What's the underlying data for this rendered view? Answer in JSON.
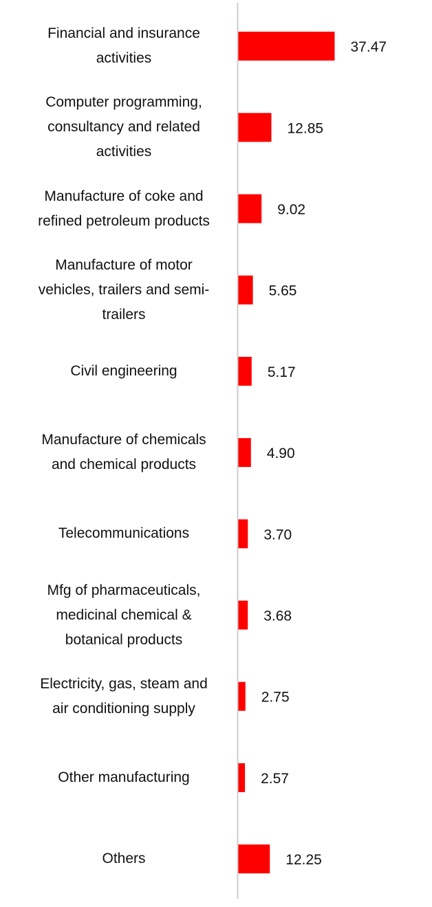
{
  "chart_data": {
    "type": "bar",
    "orientation": "horizontal",
    "categories": [
      [
        "Financial and insurance",
        "activities"
      ],
      [
        "Computer programming,",
        "consultancy and related",
        "activities"
      ],
      [
        "Manufacture of coke and",
        "refined petroleum products"
      ],
      [
        "Manufacture of motor",
        "vehicles, trailers and semi-",
        "trailers"
      ],
      [
        "Civil engineering"
      ],
      [
        "Manufacture of chemicals",
        "and chemical products"
      ],
      [
        "Telecommunications"
      ],
      [
        "Mfg of pharmaceuticals,",
        "medicinal chemical &",
        "botanical products"
      ],
      [
        "Electricity, gas, steam and",
        "air conditioning supply"
      ],
      [
        "Other manufacturing"
      ],
      [
        "Others"
      ]
    ],
    "values": [
      37.47,
      12.85,
      9.02,
      5.65,
      5.17,
      4.9,
      3.7,
      3.68,
      2.75,
      2.57,
      12.25
    ],
    "value_labels": [
      "37.47",
      "12.85",
      "9.02",
      "5.65",
      "5.17",
      "4.90",
      "3.70",
      "3.68",
      "2.75",
      "2.57",
      "12.25"
    ],
    "bar_color": "#ff0000",
    "axis_color": "#cccccc",
    "xlim": [
      0,
      40
    ],
    "grid": false,
    "legend": "none"
  }
}
